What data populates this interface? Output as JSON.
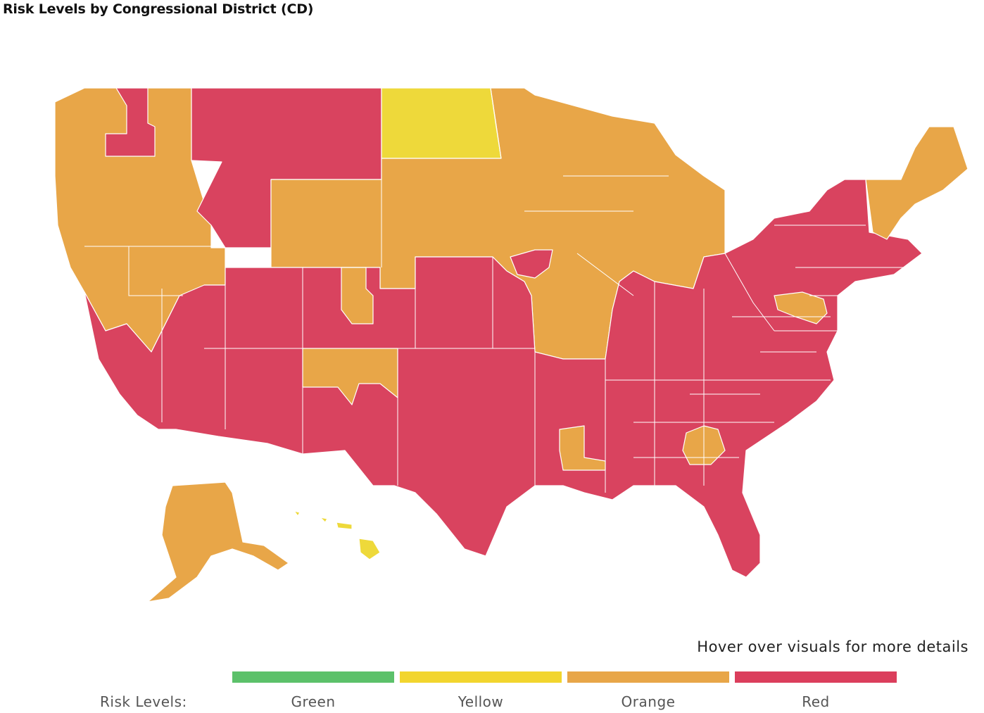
{
  "title": "Risk Levels by Congressional District (CD)",
  "hint": "Hover over visuals for more details",
  "legend": {
    "title": "Risk Levels:",
    "items": [
      {
        "label": "Green",
        "color": "#5cc16a"
      },
      {
        "label": "Yellow",
        "color": "#f2d52e"
      },
      {
        "label": "Orange",
        "color": "#e8a648"
      },
      {
        "label": "Red",
        "color": "#db3e5c"
      }
    ]
  },
  "colors": {
    "yellow": "#eed93a",
    "orange": "#e8a648",
    "red": "#d9435f",
    "border": "#ffffff"
  }
}
